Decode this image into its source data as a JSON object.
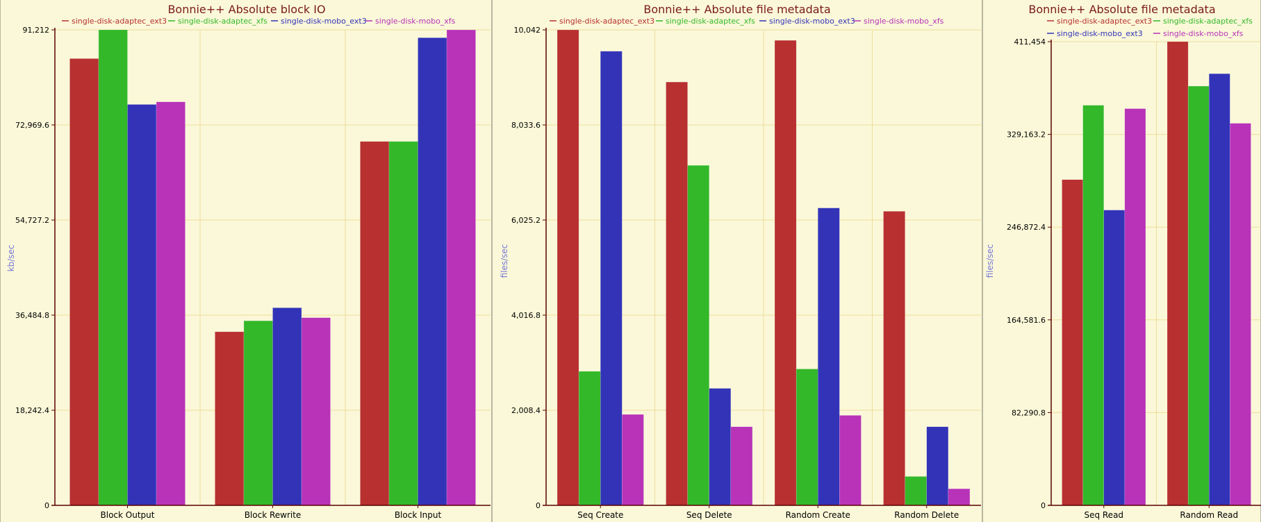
{
  "chart_data": [
    {
      "type": "bar",
      "title": "Bonnie++ Absolute block IO",
      "ylabel": "kb/sec",
      "xlabel": "",
      "ylim": [
        0,
        91212
      ],
      "yticks": [
        "0",
        "18,242.4",
        "36,484.8",
        "54,727.2",
        "72,969.6",
        "91,212"
      ],
      "categories": [
        "Block Output",
        "Block Rewrite",
        "Block Input"
      ],
      "legend": "top",
      "grid": true,
      "series": [
        {
          "name": "single-disk-adaptec_ext3",
          "color": "#b83030",
          "values": [
            85700,
            33300,
            69800
          ]
        },
        {
          "name": "single-disk-adaptec_xfs",
          "color": "#33b82a",
          "values": [
            91212,
            35400,
            69800
          ]
        },
        {
          "name": "single-disk-mobo_ext3",
          "color": "#3333b8",
          "values": [
            76900,
            37900,
            89700
          ]
        },
        {
          "name": "single-disk-mobo_xfs",
          "color": "#b833b8",
          "values": [
            77400,
            36000,
            91212
          ]
        }
      ]
    },
    {
      "type": "bar",
      "title": "Bonnie++ Absolute file metadata",
      "ylabel": "files/sec",
      "xlabel": "",
      "ylim": [
        0,
        10042
      ],
      "yticks": [
        "0",
        "2,008.4",
        "4,016.8",
        "6,025.2",
        "8,033.6",
        "10,042"
      ],
      "categories": [
        "Seq Create",
        "Seq Delete",
        "Random Create",
        "Random Delete"
      ],
      "legend": "top",
      "grid": true,
      "series": [
        {
          "name": "single-disk-adaptec_ext3",
          "color": "#b83030",
          "values": [
            10042,
            8940,
            9820,
            6210
          ]
        },
        {
          "name": "single-disk-adaptec_xfs",
          "color": "#33b82a",
          "values": [
            2830,
            7180,
            2880,
            610
          ]
        },
        {
          "name": "single-disk-mobo_ext3",
          "color": "#3333b8",
          "values": [
            9590,
            2470,
            6280,
            1660
          ]
        },
        {
          "name": "single-disk-mobo_xfs",
          "color": "#b833b8",
          "values": [
            1920,
            1660,
            1900,
            350
          ]
        }
      ]
    },
    {
      "type": "bar",
      "title": "Bonnie++ Absolute file metadata",
      "ylabel": "files/sec",
      "xlabel": "",
      "ylim": [
        0,
        411454
      ],
      "yticks": [
        "0",
        "82,290.8",
        "164,581.6",
        "246,872.4",
        "329,163.2",
        "411,454"
      ],
      "categories": [
        "Seq Read",
        "Random Read"
      ],
      "legend": "top",
      "grid": true,
      "series": [
        {
          "name": "single-disk-adaptec_ext3",
          "color": "#b83030",
          "values": [
            289000,
            411454
          ]
        },
        {
          "name": "single-disk-adaptec_xfs",
          "color": "#33b82a",
          "values": [
            355000,
            372000
          ]
        },
        {
          "name": "single-disk-mobo_ext3",
          "color": "#3333b8",
          "values": [
            262000,
            383000
          ]
        },
        {
          "name": "single-disk-mobo_xfs",
          "color": "#b833b8",
          "values": [
            352000,
            339000
          ]
        }
      ]
    }
  ]
}
